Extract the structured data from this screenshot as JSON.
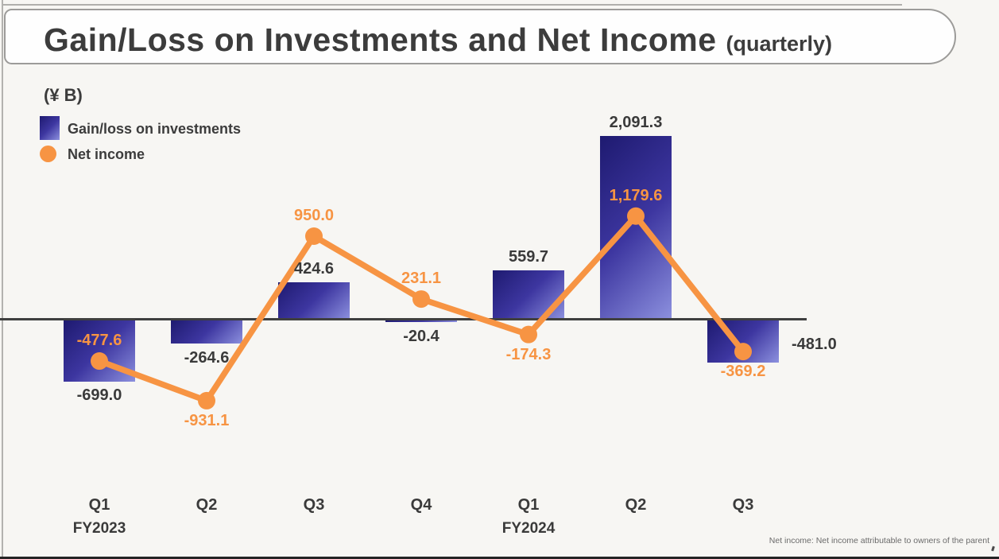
{
  "slide": {
    "title": "Gain/Loss on Investments and Net Income",
    "title_suffix": "(quarterly)",
    "unit_label": "(¥ B)",
    "legend": {
      "bar_label": "Gain/loss on investments",
      "line_label": "Net income"
    },
    "footnote": "Net income: Net income attributable to owners of the parent"
  },
  "colors": {
    "orange": "#F79443",
    "bar_gradient_dark": "#1E1A70",
    "bar_gradient_mid": "#3D36A0",
    "bar_gradient_light": "#8C90DE",
    "axis": "#3F3F3F",
    "label_dark": "#3A3A3A",
    "footnote_gray": "#6B6B6B"
  },
  "chart_data": {
    "type": "bar+line combo",
    "unit": "¥ billion",
    "title": "Gain/Loss on Investments and Net Income (quarterly)",
    "categories": [
      "Q1",
      "Q2",
      "Q3",
      "Q4",
      "Q1",
      "Q2",
      "Q3"
    ],
    "fiscal_years": [
      {
        "label": "FY2023",
        "category_index": 0
      },
      {
        "label": "FY2024",
        "category_index": 4
      }
    ],
    "baseline_value": 0,
    "grid": false,
    "legend_position": "top-left",
    "series": [
      {
        "name": "Gain/loss on investments",
        "type": "bar",
        "values": [
          -699.0,
          -264.6,
          424.6,
          -20.4,
          559.7,
          2091.3,
          -481.0
        ],
        "labels": [
          "-699.0",
          "-264.6",
          "424.6",
          "-20.4",
          "559.7",
          "2,091.3",
          "-481.0"
        ],
        "label_placement": [
          "below",
          "below",
          "above",
          "below",
          "above",
          "above",
          "right"
        ]
      },
      {
        "name": "Net income",
        "type": "line",
        "values": [
          -477.6,
          -931.1,
          950.0,
          231.1,
          -174.3,
          1179.6,
          -369.2
        ],
        "labels": [
          "-477.6",
          "-931.1",
          "950.0",
          "231.1",
          "-174.3",
          "1,179.6",
          "-369.2"
        ],
        "label_placement": [
          "above",
          "below",
          "above",
          "above",
          "below",
          "above",
          "below"
        ]
      }
    ]
  }
}
